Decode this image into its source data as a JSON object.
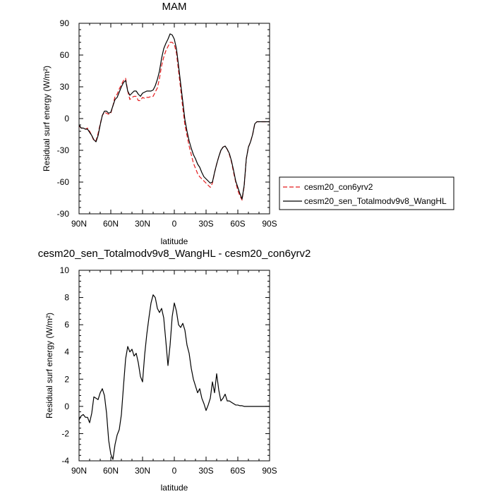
{
  "chart_data": [
    {
      "type": "line",
      "title": "MAM",
      "xlabel": "latitude",
      "ylabel": "Residual surf energy (W/m²)",
      "xlim": [
        90,
        -90
      ],
      "ylim": [
        -90,
        90
      ],
      "x_ticks": [
        90,
        60,
        30,
        0,
        -30,
        -60,
        -90
      ],
      "x_tick_labels": [
        "90N",
        "60N",
        "30N",
        "0",
        "30S",
        "60S",
        "90S"
      ],
      "y_ticks": [
        -90,
        -60,
        -30,
        0,
        30,
        60,
        90
      ],
      "y_tick_labels": [
        "-90",
        "-60",
        "-30",
        "0",
        "30",
        "60",
        "90"
      ],
      "legend": {
        "placement": "right-outside-bottom"
      },
      "series": [
        {
          "name": "cesm20_con6yrv2",
          "color": "#e41a1c",
          "dash": "dashed",
          "x": [
            90,
            88,
            86,
            84,
            82,
            80,
            78,
            76,
            74,
            72,
            70,
            68,
            66,
            64,
            62,
            60,
            58,
            56,
            54,
            52,
            50,
            48,
            46,
            44,
            42,
            40,
            38,
            36,
            34,
            32,
            30,
            28,
            26,
            24,
            22,
            20,
            18,
            16,
            14,
            12,
            10,
            8,
            6,
            4,
            2,
            0,
            -2,
            -4,
            -6,
            -8,
            -10,
            -12,
            -14,
            -16,
            -18,
            -20,
            -22,
            -24,
            -26,
            -28,
            -30,
            -32,
            -34,
            -36,
            -38,
            -40,
            -42,
            -44,
            -46,
            -48,
            -50,
            -52,
            -54,
            -56,
            -58,
            -60,
            -62,
            -64,
            -66,
            -68,
            -70,
            -72,
            -74,
            -76,
            -78,
            -80,
            -82,
            -84,
            -86,
            -88,
            -90
          ],
          "y": [
            -7,
            -9,
            -9,
            -10,
            -9,
            -12,
            -16,
            -21,
            -21,
            -14,
            -5,
            3,
            6,
            5,
            4,
            5,
            12,
            21,
            23,
            28,
            32,
            36,
            38,
            26,
            18,
            20,
            21,
            21,
            17,
            17,
            20,
            19,
            20,
            20,
            21,
            21,
            25,
            29,
            38,
            50,
            58,
            64,
            68,
            72,
            72,
            70,
            62,
            45,
            28,
            10,
            -6,
            -16,
            -26,
            -34,
            -42,
            -47,
            -52,
            -55,
            -57,
            -59,
            -61,
            -63,
            -65,
            -61,
            -51,
            -43,
            -36,
            -30,
            -27,
            -26,
            -29,
            -34,
            -41,
            -51,
            -60,
            -68,
            -73,
            -77,
            -64,
            -38,
            -27,
            -22,
            -15,
            -5,
            -3,
            -3,
            -3,
            -3,
            -3,
            -3,
            -3
          ]
        },
        {
          "name": "cesm20_sen_Totalmodv9v8_WangHL",
          "color": "#000000",
          "dash": "solid",
          "x": [
            90,
            88,
            86,
            84,
            82,
            80,
            78,
            76,
            74,
            72,
            70,
            68,
            66,
            64,
            62,
            60,
            58,
            56,
            54,
            52,
            50,
            48,
            46,
            44,
            42,
            40,
            38,
            36,
            34,
            32,
            30,
            28,
            26,
            24,
            22,
            20,
            18,
            16,
            14,
            12,
            10,
            8,
            6,
            4,
            2,
            0,
            -2,
            -4,
            -6,
            -8,
            -10,
            -12,
            -14,
            -16,
            -18,
            -20,
            -22,
            -24,
            -26,
            -28,
            -30,
            -32,
            -34,
            -36,
            -38,
            -40,
            -42,
            -44,
            -46,
            -48,
            -50,
            -52,
            -54,
            -56,
            -58,
            -60,
            -62,
            -64,
            -66,
            -68,
            -70,
            -72,
            -74,
            -76,
            -78,
            -80,
            -82,
            -84,
            -86,
            -88,
            -90
          ],
          "y": [
            -6,
            -9,
            -9,
            -10,
            -10,
            -13,
            -16,
            -20,
            -22,
            -16,
            -6,
            3,
            7,
            7,
            5,
            6,
            12,
            18,
            20,
            25,
            30,
            34,
            36,
            26,
            22,
            24,
            26,
            26,
            23,
            21,
            24,
            25,
            26,
            26,
            26,
            27,
            31,
            37,
            45,
            57,
            66,
            71,
            75,
            80,
            79,
            75,
            66,
            50,
            33,
            16,
            -1,
            -12,
            -21,
            -28,
            -34,
            -38,
            -43,
            -46,
            -51,
            -55,
            -57,
            -59,
            -61,
            -60,
            -51,
            -43,
            -36,
            -30,
            -27,
            -26,
            -29,
            -33,
            -40,
            -49,
            -59,
            -65,
            -71,
            -76,
            -63,
            -38,
            -27,
            -22,
            -15,
            -5,
            -3,
            -3,
            -3,
            -3,
            -3,
            -3,
            -3
          ]
        }
      ]
    },
    {
      "type": "line",
      "title": "cesm20_sen_Totalmodv9v8_WangHL - cesm20_con6yrv2",
      "xlabel": "latitude",
      "ylabel": "Residual surf energy (W/m²)",
      "xlim": [
        90,
        -90
      ],
      "ylim": [
        -4,
        10
      ],
      "x_ticks": [
        90,
        60,
        30,
        0,
        -30,
        -60,
        -90
      ],
      "x_tick_labels": [
        "90N",
        "60N",
        "30N",
        "0",
        "30S",
        "60S",
        "90S"
      ],
      "y_ticks": [
        -4,
        -2,
        0,
        2,
        4,
        6,
        8,
        10
      ],
      "y_tick_labels": [
        "-4",
        "-2",
        "0",
        "2",
        "4",
        "6",
        "8",
        "10"
      ],
      "series": [
        {
          "color": "#000000",
          "dash": "solid",
          "x": [
            90,
            88,
            86,
            84,
            82,
            80,
            78,
            76,
            74,
            72,
            70,
            68,
            66,
            64,
            62,
            60,
            58,
            56,
            54,
            52,
            50,
            48,
            46,
            44,
            42,
            40,
            38,
            36,
            34,
            32,
            30,
            28,
            26,
            24,
            22,
            20,
            18,
            16,
            14,
            12,
            10,
            8,
            6,
            4,
            2,
            0,
            -2,
            -4,
            -6,
            -8,
            -10,
            -12,
            -14,
            -16,
            -18,
            -20,
            -22,
            -24,
            -26,
            -28,
            -30,
            -32,
            -34,
            -36,
            -38,
            -40,
            -42,
            -44,
            -46,
            -48,
            -50,
            -52,
            -54,
            -56,
            -58,
            -60,
            -62,
            -64,
            -66,
            -68,
            -70,
            -72,
            -74,
            -76,
            -78,
            -80,
            -82,
            -84,
            -86,
            -88,
            -90
          ],
          "y": [
            -1.0,
            -0.7,
            -0.6,
            -0.8,
            -0.8,
            -1.2,
            -0.5,
            0.7,
            0.6,
            0.5,
            1.0,
            1.3,
            0.8,
            -0.5,
            -2.5,
            -3.5,
            -3.9,
            -2.8,
            -2.1,
            -1.7,
            -0.6,
            1.5,
            3.5,
            4.4,
            4.0,
            4.2,
            3.7,
            3.9,
            3.2,
            2.2,
            1.8,
            3.8,
            5.3,
            6.5,
            7.6,
            8.2,
            8.0,
            7.2,
            6.9,
            7.2,
            6.5,
            4.8,
            3.0,
            4.5,
            6.6,
            7.6,
            7.0,
            6.0,
            5.8,
            6.1,
            5.6,
            4.5,
            3.9,
            2.8,
            2.0,
            1.5,
            1.0,
            1.3,
            0.6,
            0.2,
            -0.3,
            0.1,
            0.6,
            1.8,
            1.0,
            2.4,
            1.2,
            0.4,
            0.6,
            0.9,
            0.4,
            0.4,
            0.3,
            0.2,
            0.1,
            0.1,
            0.05,
            0.05,
            0.0,
            0.0,
            0.0,
            0.0,
            0.0,
            0.0,
            0.0,
            0.0,
            0.0,
            0.0,
            0.0,
            0.0,
            0.0
          ]
        }
      ]
    }
  ]
}
